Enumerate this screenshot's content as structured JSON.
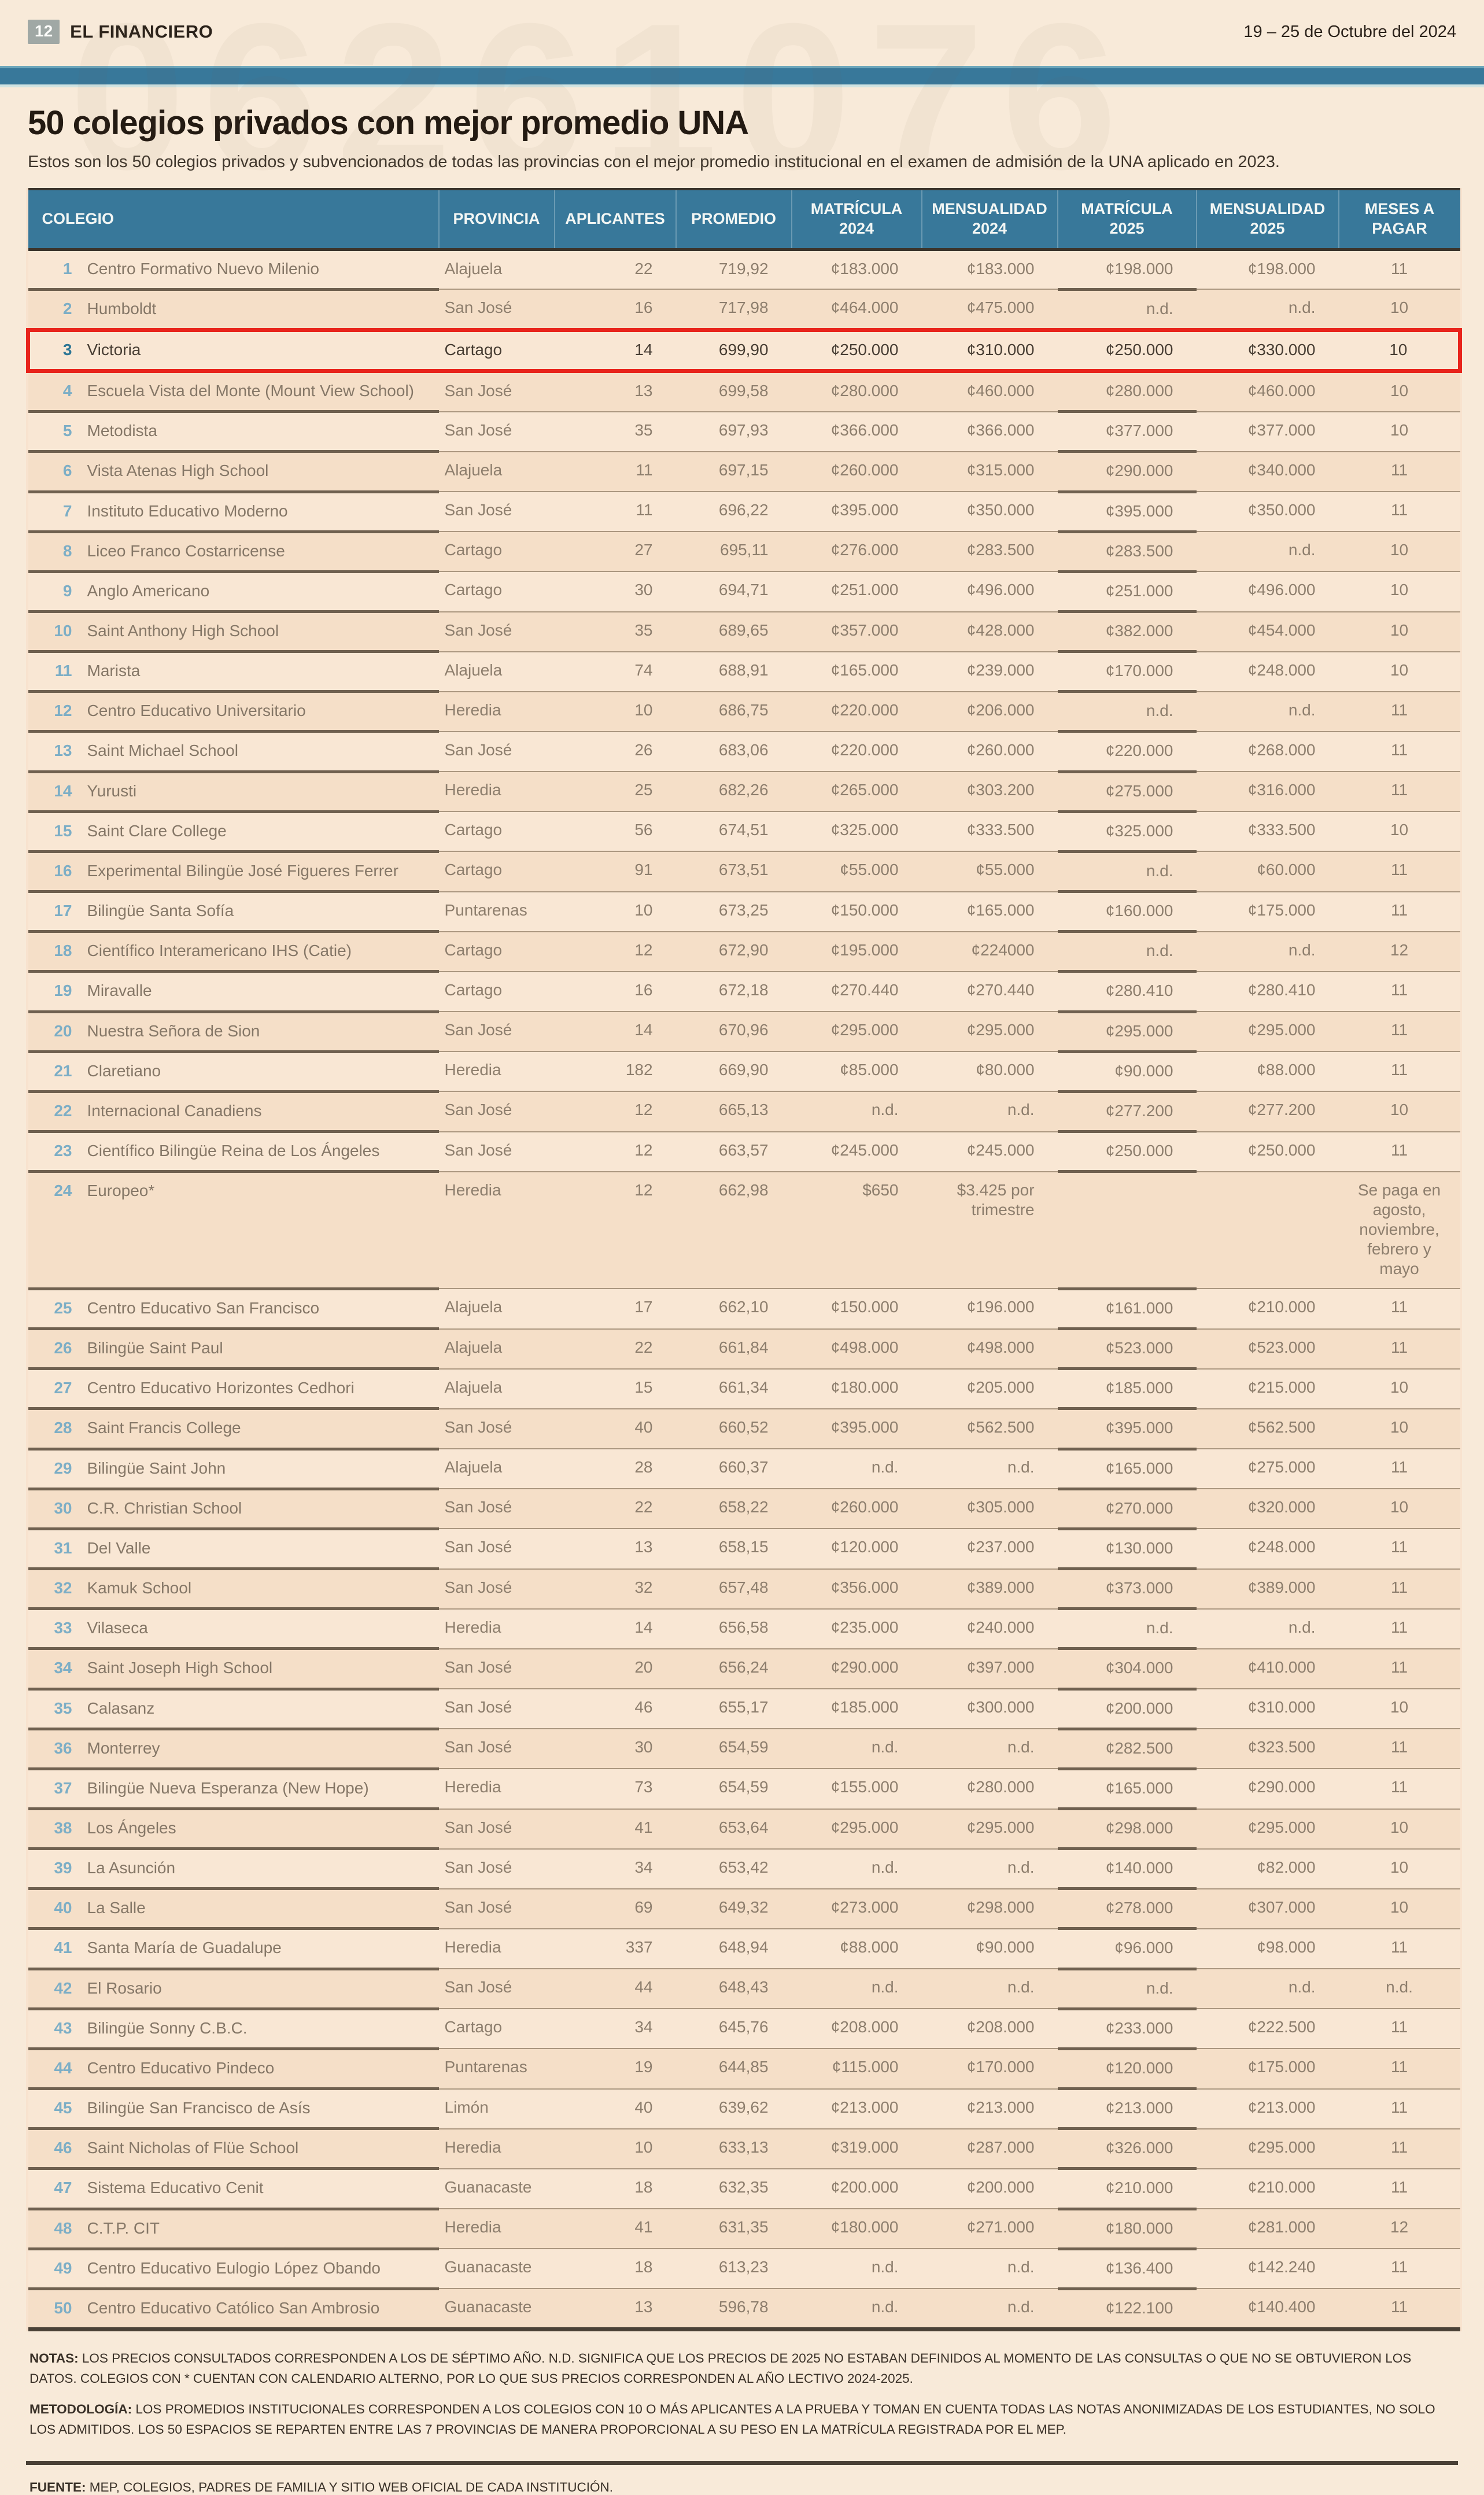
{
  "page": {
    "page_number": "12",
    "brand": "EL FINANCIERO",
    "date_range": "19 – 25 de Octubre del 2024",
    "title": "50 colegios privados con mejor promedio UNA",
    "subtitle": "Estos son los 50 colegios privados y subvencionados de todas las provincias con el mejor promedio institucional en el examen de admisión de la UNA aplicado en 2023.",
    "watermark": "06261076"
  },
  "colors": {
    "header_blue": "#38789a",
    "highlight_red": "#e8241c",
    "page_background": "#f8ead9",
    "table_background": "#f8e3cf",
    "rank_blue": "#7caec6"
  },
  "table": {
    "columns": [
      {
        "label": "COLEGIO",
        "align": "al"
      },
      {
        "label": "PROVINCIA",
        "align": "al"
      },
      {
        "label": "APLICANTES",
        "align": "ac"
      },
      {
        "label": "PROMEDIO",
        "align": "ac"
      },
      {
        "label": "MATRÍCULA\n2024",
        "align": "ac"
      },
      {
        "label": "MENSUALIDAD\n2024",
        "align": "ac"
      },
      {
        "label": "MATRÍCULA\n2025",
        "align": "ac"
      },
      {
        "label": "MENSUALIDAD\n2025",
        "align": "ac"
      },
      {
        "label": "MESES A\nPAGAR",
        "align": "ac"
      }
    ],
    "rows": [
      {
        "rank": "1",
        "colegio": "Centro Formativo Nuevo Milenio",
        "provincia": "Alajuela",
        "aplicantes": "22",
        "promedio": "719,92",
        "mat2024": "¢183.000",
        "men2024": "¢183.000",
        "mat2025": "¢198.000",
        "men2025": "¢198.000",
        "meses": "11"
      },
      {
        "rank": "2",
        "colegio": "Humboldt",
        "provincia": "San José",
        "aplicantes": "16",
        "promedio": "717,98",
        "mat2024": "¢464.000",
        "men2024": "¢475.000",
        "mat2025": "n.d.",
        "men2025": "n.d.",
        "meses": "10"
      },
      {
        "rank": "3",
        "colegio": "Victoria",
        "provincia": "Cartago",
        "aplicantes": "14",
        "promedio": "699,90",
        "mat2024": "¢250.000",
        "men2024": "¢310.000",
        "mat2025": "¢250.000",
        "men2025": "¢330.000",
        "meses": "10",
        "highlight": true
      },
      {
        "rank": "4",
        "colegio": "Escuela Vista del Monte (Mount View School)",
        "provincia": "San José",
        "aplicantes": "13",
        "promedio": "699,58",
        "mat2024": "¢280.000",
        "men2024": "¢460.000",
        "mat2025": "¢280.000",
        "men2025": "¢460.000",
        "meses": "10"
      },
      {
        "rank": "5",
        "colegio": "Metodista",
        "provincia": "San José",
        "aplicantes": "35",
        "promedio": "697,93",
        "mat2024": "¢366.000",
        "men2024": "¢366.000",
        "mat2025": "¢377.000",
        "men2025": "¢377.000",
        "meses": "10"
      },
      {
        "rank": "6",
        "colegio": "Vista Atenas High School",
        "provincia": "Alajuela",
        "aplicantes": "11",
        "promedio": "697,15",
        "mat2024": "¢260.000",
        "men2024": "¢315.000",
        "mat2025": "¢290.000",
        "men2025": "¢340.000",
        "meses": "11"
      },
      {
        "rank": "7",
        "colegio": "Instituto Educativo Moderno",
        "provincia": "San José",
        "aplicantes": "11",
        "promedio": "696,22",
        "mat2024": "¢395.000",
        "men2024": "¢350.000",
        "mat2025": "¢395.000",
        "men2025": "¢350.000",
        "meses": "11"
      },
      {
        "rank": "8",
        "colegio": "Liceo Franco Costarricense",
        "provincia": "Cartago",
        "aplicantes": "27",
        "promedio": "695,11",
        "mat2024": "¢276.000",
        "men2024": "¢283.500",
        "mat2025": "¢283.500",
        "men2025": "n.d.",
        "meses": "10"
      },
      {
        "rank": "9",
        "colegio": "Anglo Americano",
        "provincia": "Cartago",
        "aplicantes": "30",
        "promedio": "694,71",
        "mat2024": "¢251.000",
        "men2024": "¢496.000",
        "mat2025": "¢251.000",
        "men2025": "¢496.000",
        "meses": "10"
      },
      {
        "rank": "10",
        "colegio": "Saint Anthony High School",
        "provincia": "San José",
        "aplicantes": "35",
        "promedio": "689,65",
        "mat2024": "¢357.000",
        "men2024": "¢428.000",
        "mat2025": "¢382.000",
        "men2025": "¢454.000",
        "meses": "10"
      },
      {
        "rank": "11",
        "colegio": "Marista",
        "provincia": "Alajuela",
        "aplicantes": "74",
        "promedio": "688,91",
        "mat2024": "¢165.000",
        "men2024": "¢239.000",
        "mat2025": "¢170.000",
        "men2025": "¢248.000",
        "meses": "10"
      },
      {
        "rank": "12",
        "colegio": "Centro Educativo Universitario",
        "provincia": "Heredia",
        "aplicantes": "10",
        "promedio": "686,75",
        "mat2024": "¢220.000",
        "men2024": "¢206.000",
        "mat2025": "n.d.",
        "men2025": "n.d.",
        "meses": "11"
      },
      {
        "rank": "13",
        "colegio": "Saint Michael School",
        "provincia": "San José",
        "aplicantes": "26",
        "promedio": "683,06",
        "mat2024": "¢220.000",
        "men2024": "¢260.000",
        "mat2025": "¢220.000",
        "men2025": "¢268.000",
        "meses": "11"
      },
      {
        "rank": "14",
        "colegio": "Yurusti",
        "provincia": "Heredia",
        "aplicantes": "25",
        "promedio": "682,26",
        "mat2024": "¢265.000",
        "men2024": "¢303.200",
        "mat2025": "¢275.000",
        "men2025": "¢316.000",
        "meses": "11"
      },
      {
        "rank": "15",
        "colegio": "Saint Clare College",
        "provincia": "Cartago",
        "aplicantes": "56",
        "promedio": "674,51",
        "mat2024": "¢325.000",
        "men2024": "¢333.500",
        "mat2025": "¢325.000",
        "men2025": "¢333.500",
        "meses": "10"
      },
      {
        "rank": "16",
        "colegio": "Experimental Bilingüe José Figueres Ferrer",
        "provincia": "Cartago",
        "aplicantes": "91",
        "promedio": "673,51",
        "mat2024": "¢55.000",
        "men2024": "¢55.000",
        "mat2025": "n.d.",
        "men2025": "¢60.000",
        "meses": "11"
      },
      {
        "rank": "17",
        "colegio": "Bilingüe Santa Sofía",
        "provincia": "Puntarenas",
        "aplicantes": "10",
        "promedio": "673,25",
        "mat2024": "¢150.000",
        "men2024": "¢165.000",
        "mat2025": "¢160.000",
        "men2025": "¢175.000",
        "meses": "11"
      },
      {
        "rank": "18",
        "colegio": "Científico Interamericano IHS (Catie)",
        "provincia": "Cartago",
        "aplicantes": "12",
        "promedio": "672,90",
        "mat2024": "¢195.000",
        "men2024": "¢224000",
        "mat2025": "n.d.",
        "men2025": "n.d.",
        "meses": "12"
      },
      {
        "rank": "19",
        "colegio": "Miravalle",
        "provincia": "Cartago",
        "aplicantes": "16",
        "promedio": "672,18",
        "mat2024": "¢270.440",
        "men2024": "¢270.440",
        "mat2025": "¢280.410",
        "men2025": "¢280.410",
        "meses": "11"
      },
      {
        "rank": "20",
        "colegio": "Nuestra Señora de Sion",
        "provincia": "San José",
        "aplicantes": "14",
        "promedio": "670,96",
        "mat2024": "¢295.000",
        "men2024": "¢295.000",
        "mat2025": "¢295.000",
        "men2025": "¢295.000",
        "meses": "11"
      },
      {
        "rank": "21",
        "colegio": "Claretiano",
        "provincia": "Heredia",
        "aplicantes": "182",
        "promedio": "669,90",
        "mat2024": "¢85.000",
        "men2024": "¢80.000",
        "mat2025": "¢90.000",
        "men2025": "¢88.000",
        "meses": "11"
      },
      {
        "rank": "22",
        "colegio": "Internacional Canadiens",
        "provincia": "San José",
        "aplicantes": "12",
        "promedio": "665,13",
        "mat2024": "n.d.",
        "men2024": "n.d.",
        "mat2025": "¢277.200",
        "men2025": "¢277.200",
        "meses": "10"
      },
      {
        "rank": "23",
        "colegio": "Científico Bilingüe Reina de Los Ángeles",
        "provincia": "San José",
        "aplicantes": "12",
        "promedio": "663,57",
        "mat2024": "¢245.000",
        "men2024": "¢245.000",
        "mat2025": "¢250.000",
        "men2025": "¢250.000",
        "meses": "11"
      },
      {
        "rank": "24",
        "colegio": "Europeo*",
        "provincia": "Heredia",
        "aplicantes": "12",
        "promedio": "662,98",
        "mat2024": "$650",
        "men2024": "$3.425 por trimestre",
        "mat2025": "",
        "men2025": "",
        "meses": "Se paga en agosto, noviembre, febrero y mayo"
      },
      {
        "rank": "25",
        "colegio": "Centro Educativo San Francisco",
        "provincia": "Alajuela",
        "aplicantes": "17",
        "promedio": "662,10",
        "mat2024": "¢150.000",
        "men2024": "¢196.000",
        "mat2025": "¢161.000",
        "men2025": "¢210.000",
        "meses": "11"
      },
      {
        "rank": "26",
        "colegio": "Bilingüe Saint Paul",
        "provincia": "Alajuela",
        "aplicantes": "22",
        "promedio": "661,84",
        "mat2024": "¢498.000",
        "men2024": "¢498.000",
        "mat2025": "¢523.000",
        "men2025": "¢523.000",
        "meses": "11"
      },
      {
        "rank": "27",
        "colegio": "Centro Educativo Horizontes Cedhori",
        "provincia": "Alajuela",
        "aplicantes": "15",
        "promedio": "661,34",
        "mat2024": "¢180.000",
        "men2024": "¢205.000",
        "mat2025": "¢185.000",
        "men2025": "¢215.000",
        "meses": "10"
      },
      {
        "rank": "28",
        "colegio": "Saint Francis College",
        "provincia": "San José",
        "aplicantes": "40",
        "promedio": "660,52",
        "mat2024": "¢395.000",
        "men2024": "¢562.500",
        "mat2025": "¢395.000",
        "men2025": "¢562.500",
        "meses": "10"
      },
      {
        "rank": "29",
        "colegio": "Bilingüe Saint John",
        "provincia": "Alajuela",
        "aplicantes": "28",
        "promedio": "660,37",
        "mat2024": "n.d.",
        "men2024": "n.d.",
        "mat2025": "¢165.000",
        "men2025": "¢275.000",
        "meses": "11"
      },
      {
        "rank": "30",
        "colegio": "C.R. Christian School",
        "provincia": "San José",
        "aplicantes": "22",
        "promedio": "658,22",
        "mat2024": "¢260.000",
        "men2024": "¢305.000",
        "mat2025": "¢270.000",
        "men2025": "¢320.000",
        "meses": "10"
      },
      {
        "rank": "31",
        "colegio": "Del Valle",
        "provincia": "San José",
        "aplicantes": "13",
        "promedio": "658,15",
        "mat2024": "¢120.000",
        "men2024": "¢237.000",
        "mat2025": "¢130.000",
        "men2025": "¢248.000",
        "meses": "11"
      },
      {
        "rank": "32",
        "colegio": "Kamuk School",
        "provincia": "San José",
        "aplicantes": "32",
        "promedio": "657,48",
        "mat2024": "¢356.000",
        "men2024": "¢389.000",
        "mat2025": "¢373.000",
        "men2025": "¢389.000",
        "meses": "11"
      },
      {
        "rank": "33",
        "colegio": "Vilaseca",
        "provincia": "Heredia",
        "aplicantes": "14",
        "promedio": "656,58",
        "mat2024": "¢235.000",
        "men2024": "¢240.000",
        "mat2025": "n.d.",
        "men2025": "n.d.",
        "meses": "11"
      },
      {
        "rank": "34",
        "colegio": "Saint Joseph High School",
        "provincia": "San José",
        "aplicantes": "20",
        "promedio": "656,24",
        "mat2024": "¢290.000",
        "men2024": "¢397.000",
        "mat2025": "¢304.000",
        "men2025": "¢410.000",
        "meses": "11"
      },
      {
        "rank": "35",
        "colegio": "Calasanz",
        "provincia": "San José",
        "aplicantes": "46",
        "promedio": "655,17",
        "mat2024": "¢185.000",
        "men2024": "¢300.000",
        "mat2025": "¢200.000",
        "men2025": "¢310.000",
        "meses": "10"
      },
      {
        "rank": "36",
        "colegio": "Monterrey",
        "provincia": "San José",
        "aplicantes": "30",
        "promedio": "654,59",
        "mat2024": "n.d.",
        "men2024": "n.d.",
        "mat2025": "¢282.500",
        "men2025": "¢323.500",
        "meses": "11"
      },
      {
        "rank": "37",
        "colegio": "Bilingüe Nueva Esperanza (New Hope)",
        "provincia": "Heredia",
        "aplicantes": "73",
        "promedio": "654,59",
        "mat2024": "¢155.000",
        "men2024": "¢280.000",
        "mat2025": "¢165.000",
        "men2025": "¢290.000",
        "meses": "11"
      },
      {
        "rank": "38",
        "colegio": "Los Ángeles",
        "provincia": "San José",
        "aplicantes": "41",
        "promedio": "653,64",
        "mat2024": "¢295.000",
        "men2024": "¢295.000",
        "mat2025": "¢298.000",
        "men2025": "¢295.000",
        "meses": "10"
      },
      {
        "rank": "39",
        "colegio": "La Asunción",
        "provincia": "San José",
        "aplicantes": "34",
        "promedio": "653,42",
        "mat2024": "n.d.",
        "men2024": "n.d.",
        "mat2025": "¢140.000",
        "men2025": "¢82.000",
        "meses": "10"
      },
      {
        "rank": "40",
        "colegio": "La Salle",
        "provincia": "San José",
        "aplicantes": "69",
        "promedio": "649,32",
        "mat2024": "¢273.000",
        "men2024": "¢298.000",
        "mat2025": "¢278.000",
        "men2025": "¢307.000",
        "meses": "10"
      },
      {
        "rank": "41",
        "colegio": "Santa María de Guadalupe",
        "provincia": "Heredia",
        "aplicantes": "337",
        "promedio": "648,94",
        "mat2024": "¢88.000",
        "men2024": "¢90.000",
        "mat2025": "¢96.000",
        "men2025": "¢98.000",
        "meses": "11"
      },
      {
        "rank": "42",
        "colegio": "El Rosario",
        "provincia": "San José",
        "aplicantes": "44",
        "promedio": "648,43",
        "mat2024": "n.d.",
        "men2024": "n.d.",
        "mat2025": "n.d.",
        "men2025": "n.d.",
        "meses": "n.d."
      },
      {
        "rank": "43",
        "colegio": "Bilingüe Sonny C.B.C.",
        "provincia": "Cartago",
        "aplicantes": "34",
        "promedio": "645,76",
        "mat2024": "¢208.000",
        "men2024": "¢208.000",
        "mat2025": "¢233.000",
        "men2025": "¢222.500",
        "meses": "11"
      },
      {
        "rank": "44",
        "colegio": "Centro Educativo Pindeco",
        "provincia": "Puntarenas",
        "aplicantes": "19",
        "promedio": "644,85",
        "mat2024": "¢115.000",
        "men2024": "¢170.000",
        "mat2025": "¢120.000",
        "men2025": "¢175.000",
        "meses": "11"
      },
      {
        "rank": "45",
        "colegio": "Bilingüe San Francisco de Asís",
        "provincia": "Limón",
        "aplicantes": "40",
        "promedio": "639,62",
        "mat2024": "¢213.000",
        "men2024": "¢213.000",
        "mat2025": "¢213.000",
        "men2025": "¢213.000",
        "meses": "11"
      },
      {
        "rank": "46",
        "colegio": "Saint Nicholas of Flüe School",
        "provincia": "Heredia",
        "aplicantes": "10",
        "promedio": "633,13",
        "mat2024": "¢319.000",
        "men2024": "¢287.000",
        "mat2025": "¢326.000",
        "men2025": "¢295.000",
        "meses": "11"
      },
      {
        "rank": "47",
        "colegio": "Sistema Educativo Cenit",
        "provincia": "Guanacaste",
        "aplicantes": "18",
        "promedio": "632,35",
        "mat2024": "¢200.000",
        "men2024": "¢200.000",
        "mat2025": "¢210.000",
        "men2025": "¢210.000",
        "meses": "11"
      },
      {
        "rank": "48",
        "colegio": "C.T.P. CIT",
        "provincia": "Heredia",
        "aplicantes": "41",
        "promedio": "631,35",
        "mat2024": "¢180.000",
        "men2024": "¢271.000",
        "mat2025": "¢180.000",
        "men2025": "¢281.000",
        "meses": "12"
      },
      {
        "rank": "49",
        "colegio": "Centro Educativo Eulogio López Obando",
        "provincia": "Guanacaste",
        "aplicantes": "18",
        "promedio": "613,23",
        "mat2024": "n.d.",
        "men2024": "n.d.",
        "mat2025": "¢136.400",
        "men2025": "¢142.240",
        "meses": "11"
      },
      {
        "rank": "50",
        "colegio": "Centro Educativo Católico San Ambrosio",
        "provincia": "Guanacaste",
        "aplicantes": "13",
        "promedio": "596,78",
        "mat2024": "n.d.",
        "men2024": "n.d.",
        "mat2025": "¢122.100",
        "men2025": "¢140.400",
        "meses": "11"
      }
    ]
  },
  "notes": {
    "notas_label": "NOTAS:",
    "notas_text": " LOS PRECIOS CONSULTADOS CORRESPONDEN A LOS DE SÉPTIMO AÑO. N.D. SIGNIFICA QUE LOS PRECIOS DE 2025 NO ESTABAN DEFINIDOS AL MOMENTO DE LAS CONSULTAS O QUE NO SE OBTUVIERON LOS DATOS. COLEGIOS CON * CUENTAN CON CALENDARIO ALTERNO, POR LO QUE SUS PRECIOS CORRESPONDEN AL AÑO LECTIVO 2024-2025.",
    "metodologia_label": "METODOLOGÍA:",
    "metodologia_text": " LOS PROMEDIOS INSTITUCIONALES CORRESPONDEN A LOS COLEGIOS CON 10 O MÁS APLICANTES A LA PRUEBA Y TOMAN EN CUENTA TODAS LAS NOTAS ANONIMIZADAS DE LOS ESTUDIANTES, NO SOLO LOS ADMITIDOS. LOS 50 ESPACIOS SE REPARTEN ENTRE LAS 7 PROVINCIAS DE MANERA PROPORCIONAL A SU PESO EN LA MATRÍCULA REGISTRADA POR EL MEP.",
    "fuente_label": "FUENTE:",
    "fuente_text": " MEP, COLEGIOS, PADRES DE FAMILIA Y SITIO WEB OFICIAL DE CADA INSTITUCIÓN."
  }
}
